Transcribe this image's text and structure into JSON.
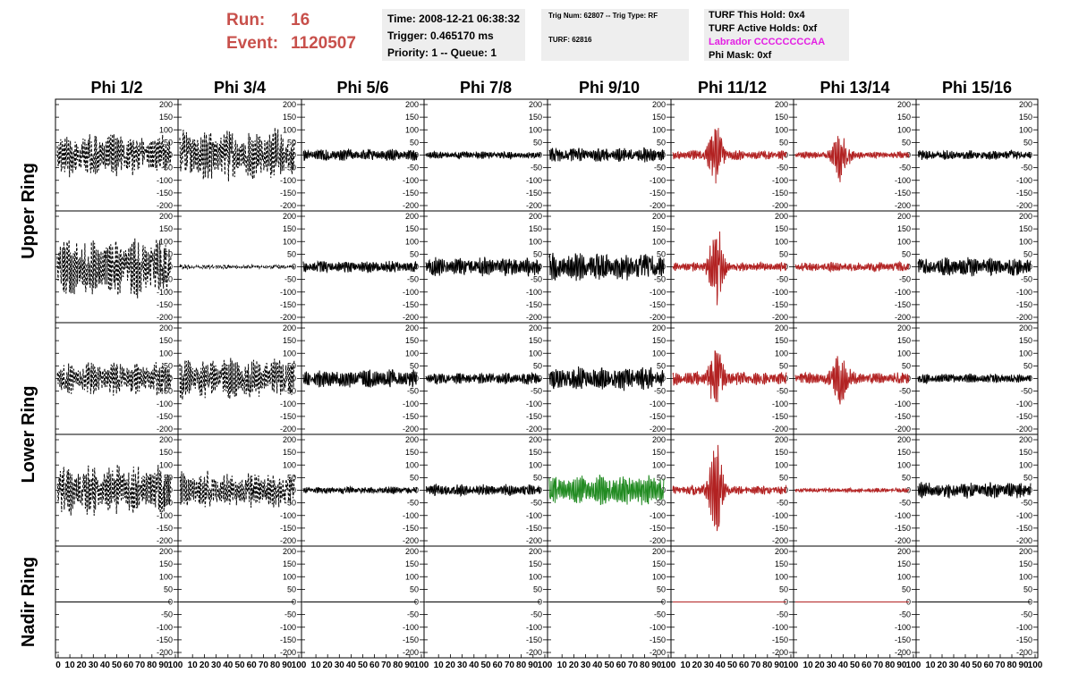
{
  "header": {
    "run_label": "Run:",
    "run_value": "16",
    "event_label": "Event:",
    "event_value": "1120507"
  },
  "info_box_1": {
    "time": "Time: 2008-12-21 06:38:32",
    "trigger": "Trigger: 0.465170 ms",
    "priority": "Priority: 1 -- Queue: 1"
  },
  "info_box_2": {
    "trig": "Trig Num: 62807 -- Trig Type: RF",
    "turf": "TURF: 62816"
  },
  "info_box_3": {
    "this_hold": "TURF This Hold: 0x4",
    "active_holds": "TURF Active Holds: 0xf",
    "labrador": "Labrador CCCCCCCCAA",
    "phi_mask": "Phi Mask: 0xf"
  },
  "columns": [
    "Phi 1/2",
    "Phi 3/4",
    "Phi 5/6",
    "Phi 7/8",
    "Phi 9/10",
    "Phi 11/12",
    "Phi 13/14",
    "Phi 15/16"
  ],
  "row_groups": [
    {
      "label": "Upper Ring",
      "rows": [
        0,
        1
      ]
    },
    {
      "label": "Lower Ring",
      "rows": [
        2,
        3
      ]
    },
    {
      "label": "Nadir Ring",
      "rows": [
        4
      ]
    }
  ],
  "colors": {
    "default": "#000000",
    "triggered": "#b22222",
    "green": "#228b22"
  },
  "chart_data": {
    "type": "line",
    "title": "",
    "xlabel": "",
    "ylabel": "",
    "xlim": [
      0,
      100
    ],
    "ylim": [
      -200,
      200
    ],
    "yticks": [
      -200,
      -150,
      -100,
      -50,
      0,
      50,
      100,
      150,
      200
    ],
    "yticks_major_labels": [
      "-200",
      "-150",
      "-100",
      "-50",
      "0",
      "50",
      "100",
      "150",
      "200"
    ],
    "xticks_labels": [
      "0",
      "10",
      "20",
      "30",
      "40",
      "50",
      "60",
      "70",
      "80",
      "90",
      "100"
    ],
    "panels": [
      [
        {
          "col": "Phi 1/2",
          "amp": 90,
          "style": "dashed",
          "color": "default"
        },
        {
          "col": "Phi 3/4",
          "amp": 110,
          "style": "dashed",
          "color": "default"
        },
        {
          "col": "Phi 5/6",
          "amp": 25,
          "style": "solid",
          "color": "default"
        },
        {
          "col": "Phi 7/8",
          "amp": 15,
          "style": "solid",
          "color": "default"
        },
        {
          "col": "Phi 9/10",
          "amp": 30,
          "style": "solid",
          "color": "default"
        },
        {
          "col": "Phi 11/12",
          "amp": 20,
          "peak": 130,
          "peak_x": 38,
          "style": "solid",
          "color": "triggered"
        },
        {
          "col": "Phi 13/14",
          "amp": 15,
          "peak": 120,
          "peak_x": 40,
          "style": "solid",
          "color": "triggered"
        },
        {
          "col": "Phi 15/16",
          "amp": 20,
          "style": "solid",
          "color": "default"
        }
      ],
      [
        {
          "col": "Phi 1/2",
          "amp": 130,
          "style": "dashed",
          "color": "default"
        },
        {
          "col": "Phi 3/4",
          "amp": 8,
          "style": "dashed",
          "color": "default"
        },
        {
          "col": "Phi 5/6",
          "amp": 25,
          "style": "solid",
          "color": "default"
        },
        {
          "col": "Phi 7/8",
          "amp": 40,
          "style": "solid",
          "color": "default"
        },
        {
          "col": "Phi 9/10",
          "amp": 60,
          "style": "solid",
          "color": "default"
        },
        {
          "col": "Phi 11/12",
          "amp": 20,
          "peak": 190,
          "peak_x": 38,
          "style": "solid",
          "color": "triggered"
        },
        {
          "col": "Phi 13/14",
          "amp": 20,
          "style": "solid",
          "color": "triggered"
        },
        {
          "col": "Phi 15/16",
          "amp": 40,
          "style": "solid",
          "color": "default"
        }
      ],
      [
        {
          "col": "Phi 1/2",
          "amp": 70,
          "style": "dashed",
          "color": "default"
        },
        {
          "col": "Phi 3/4",
          "amp": 90,
          "style": "dashed",
          "color": "default"
        },
        {
          "col": "Phi 5/6",
          "amp": 40,
          "style": "solid",
          "color": "default"
        },
        {
          "col": "Phi 7/8",
          "amp": 25,
          "style": "solid",
          "color": "default"
        },
        {
          "col": "Phi 9/10",
          "amp": 50,
          "style": "solid",
          "color": "default"
        },
        {
          "col": "Phi 11/12",
          "amp": 30,
          "peak": 140,
          "peak_x": 38,
          "style": "solid",
          "color": "triggered"
        },
        {
          "col": "Phi 13/14",
          "amp": 25,
          "peak": 130,
          "peak_x": 40,
          "style": "solid",
          "color": "triggered"
        },
        {
          "col": "Phi 15/16",
          "amp": 20,
          "style": "solid",
          "color": "default"
        }
      ],
      [
        {
          "col": "Phi 1/2",
          "amp": 110,
          "style": "dashed",
          "color": "default"
        },
        {
          "col": "Phi 3/4",
          "amp": 80,
          "style": "dashed",
          "color": "default"
        },
        {
          "col": "Phi 5/6",
          "amp": 15,
          "style": "solid",
          "color": "default"
        },
        {
          "col": "Phi 7/8",
          "amp": 25,
          "style": "solid",
          "color": "default"
        },
        {
          "col": "Phi 9/10",
          "amp": 65,
          "style": "solid",
          "color": "green"
        },
        {
          "col": "Phi 11/12",
          "amp": 20,
          "peak": 200,
          "peak_x": 38,
          "style": "solid",
          "color": "triggered"
        },
        {
          "col": "Phi 13/14",
          "amp": 10,
          "style": "solid",
          "color": "triggered"
        },
        {
          "col": "Phi 15/16",
          "amp": 35,
          "style": "solid",
          "color": "default"
        }
      ],
      [
        {
          "col": "Phi 1/2",
          "amp": 0,
          "style": "solid",
          "color": "default"
        },
        {
          "col": "Phi 3/4",
          "amp": 0,
          "style": "solid",
          "color": "default"
        },
        {
          "col": "Phi 5/6",
          "amp": 0,
          "style": "solid",
          "color": "default"
        },
        {
          "col": "Phi 7/8",
          "amp": 0,
          "style": "solid",
          "color": "default"
        },
        {
          "col": "Phi 9/10",
          "amp": 0,
          "style": "solid",
          "color": "default"
        },
        {
          "col": "Phi 11/12",
          "amp": 0,
          "style": "solid",
          "color": "triggered"
        },
        {
          "col": "Phi 13/14",
          "amp": 0,
          "style": "solid",
          "color": "triggered"
        },
        {
          "col": "Phi 15/16",
          "amp": 0,
          "style": "solid",
          "color": "default"
        }
      ]
    ]
  }
}
